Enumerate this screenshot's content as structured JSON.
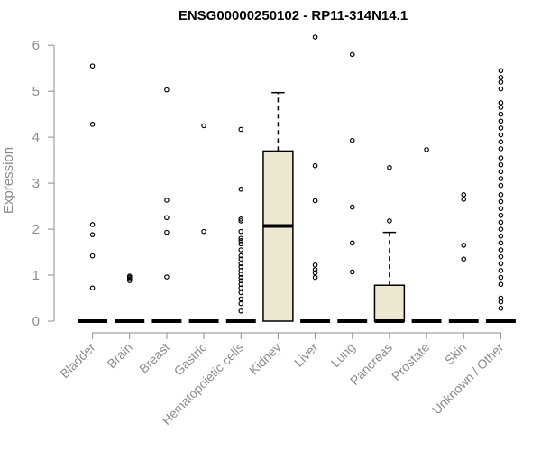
{
  "chart_data": {
    "type": "boxplot",
    "title": "ENSG00000250102 - RP11-314N14.1",
    "xlabel": "",
    "ylabel": "Expression",
    "ylim": [
      0,
      6.2
    ],
    "yticks": [
      0,
      1,
      2,
      3,
      4,
      5,
      6
    ],
    "box_fill": "#ede7cf",
    "categories": [
      "Bladder",
      "Brain",
      "Breast",
      "Gastric",
      "Hematopoietic cells",
      "Kidney",
      "Liver",
      "Lung",
      "Pancreas",
      "Prostate",
      "Skin",
      "Unknown / Other"
    ],
    "boxes": [
      {
        "q1": 0,
        "median": 0,
        "q3": 0,
        "whisker_low": 0,
        "whisker_high": 0,
        "outliers": [
          5.55,
          4.28,
          2.1,
          1.88,
          1.42,
          0.72
        ]
      },
      {
        "q1": 0,
        "median": 0,
        "q3": 0,
        "whisker_low": 0,
        "whisker_high": 0,
        "outliers": [
          0.98,
          0.95,
          0.92,
          0.88
        ]
      },
      {
        "q1": 0,
        "median": 0,
        "q3": 0,
        "whisker_low": 0,
        "whisker_high": 0,
        "outliers": [
          5.03,
          2.63,
          2.25,
          1.93,
          0.96
        ]
      },
      {
        "q1": 0,
        "median": 0,
        "q3": 0,
        "whisker_low": 0,
        "whisker_high": 0,
        "outliers": [
          4.25,
          1.95
        ]
      },
      {
        "q1": 0,
        "median": 0,
        "q3": 0,
        "whisker_low": 0,
        "whisker_high": 0,
        "outliers": [
          4.17,
          2.87,
          2.22,
          2.18,
          1.95,
          1.8,
          1.75,
          1.68,
          1.55,
          1.42,
          1.35,
          1.25,
          1.18,
          1.1,
          1.02,
          0.95,
          0.88,
          0.8,
          0.72,
          0.62,
          0.48,
          0.38,
          0.22
        ]
      },
      {
        "q1": 0,
        "median": 2.07,
        "q3": 3.7,
        "whisker_low": 0,
        "whisker_high": 4.97,
        "outliers": []
      },
      {
        "q1": 0,
        "median": 0,
        "q3": 0,
        "whisker_low": 0,
        "whisker_high": 0,
        "outliers": [
          6.18,
          3.38,
          2.62,
          1.22,
          1.12,
          1.05,
          0.95
        ]
      },
      {
        "q1": 0,
        "median": 0,
        "q3": 0,
        "whisker_low": 0,
        "whisker_high": 0,
        "outliers": [
          5.8,
          3.93,
          2.48,
          1.7,
          1.07
        ]
      },
      {
        "q1": 0,
        "median": 0,
        "q3": 0.78,
        "whisker_low": 0,
        "whisker_high": 1.93,
        "outliers": [
          3.34,
          2.18
        ]
      },
      {
        "q1": 0,
        "median": 0,
        "q3": 0,
        "whisker_low": 0,
        "whisker_high": 0,
        "outliers": [
          3.73
        ]
      },
      {
        "q1": 0,
        "median": 0,
        "q3": 0,
        "whisker_low": 0,
        "whisker_high": 0,
        "outliers": [
          2.75,
          2.65,
          1.65,
          1.35
        ]
      },
      {
        "q1": 0,
        "median": 0,
        "q3": 0,
        "whisker_low": 0,
        "whisker_high": 0,
        "outliers": [
          5.45,
          5.3,
          5.2,
          5.05,
          4.75,
          4.65,
          4.5,
          4.35,
          4.2,
          4.05,
          3.9,
          3.75,
          3.55,
          3.4,
          3.25,
          3.1,
          2.95,
          2.75,
          2.6,
          2.45,
          2.3,
          2.15,
          2.0,
          1.85,
          1.7,
          1.55,
          1.4,
          1.25,
          1.1,
          0.95,
          0.8,
          0.5,
          0.42,
          0.28
        ]
      }
    ]
  }
}
